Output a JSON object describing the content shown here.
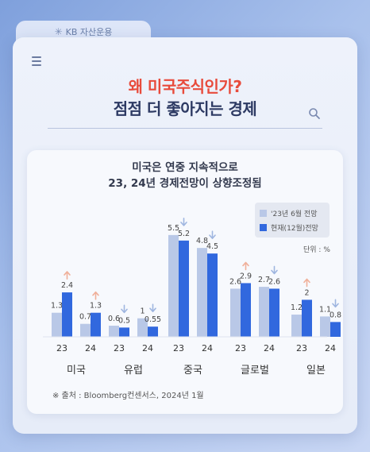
{
  "header": {
    "brand": "KB 자산운용"
  },
  "page": {
    "title_line1": "왜 미국주식인가?",
    "title_line2": "점점 더 좋아지는 경제"
  },
  "chart_data": {
    "type": "bar",
    "title_lines": [
      "미국은 연중 지속적으로",
      "23, 24년 경제전망이 상향조정됨"
    ],
    "unit": "단위 : %",
    "groups": [
      "미국",
      "유럽",
      "중국",
      "글로벌",
      "일본"
    ],
    "years": [
      "23",
      "24"
    ],
    "series": [
      {
        "name": "'23년 6월 전망",
        "color": "#b9c8e7",
        "values": [
          [
            1.3,
            0.7
          ],
          [
            0.6,
            1
          ],
          [
            5.5,
            4.8
          ],
          [
            2.6,
            2.7
          ],
          [
            1.2,
            1.1
          ]
        ],
        "labels": [
          [
            "1.3",
            "0.7"
          ],
          [
            "0.6",
            "1"
          ],
          [
            "5.5",
            "4.8"
          ],
          [
            "2.6",
            "2.7"
          ],
          [
            "1.2",
            "1.1"
          ]
        ]
      },
      {
        "name": "현재(12월)전망",
        "color": "#3168de",
        "values": [
          [
            2.4,
            1.3
          ],
          [
            0.5,
            0.55
          ],
          [
            5.2,
            4.5
          ],
          [
            2.9,
            2.6
          ],
          [
            2,
            0.8
          ]
        ],
        "labels": [
          [
            "2.4",
            "1.3"
          ],
          [
            "0.5",
            "0.55"
          ],
          [
            "5.2",
            "4.5"
          ],
          [
            "2.9",
            "2.6"
          ],
          [
            "2",
            "0.8"
          ]
        ]
      }
    ],
    "direction": [
      [
        "up",
        "up"
      ],
      [
        "down",
        "down"
      ],
      [
        "down",
        "down"
      ],
      [
        "up",
        "down"
      ],
      [
        "up",
        "down"
      ]
    ],
    "arrow_colors": {
      "up": "#f0b09a",
      "down": "#9fb6e0"
    },
    "ylim": [
      0,
      6
    ],
    "source": "※ 출처 : Bloomberg컨센서스, 2024년 1월"
  }
}
